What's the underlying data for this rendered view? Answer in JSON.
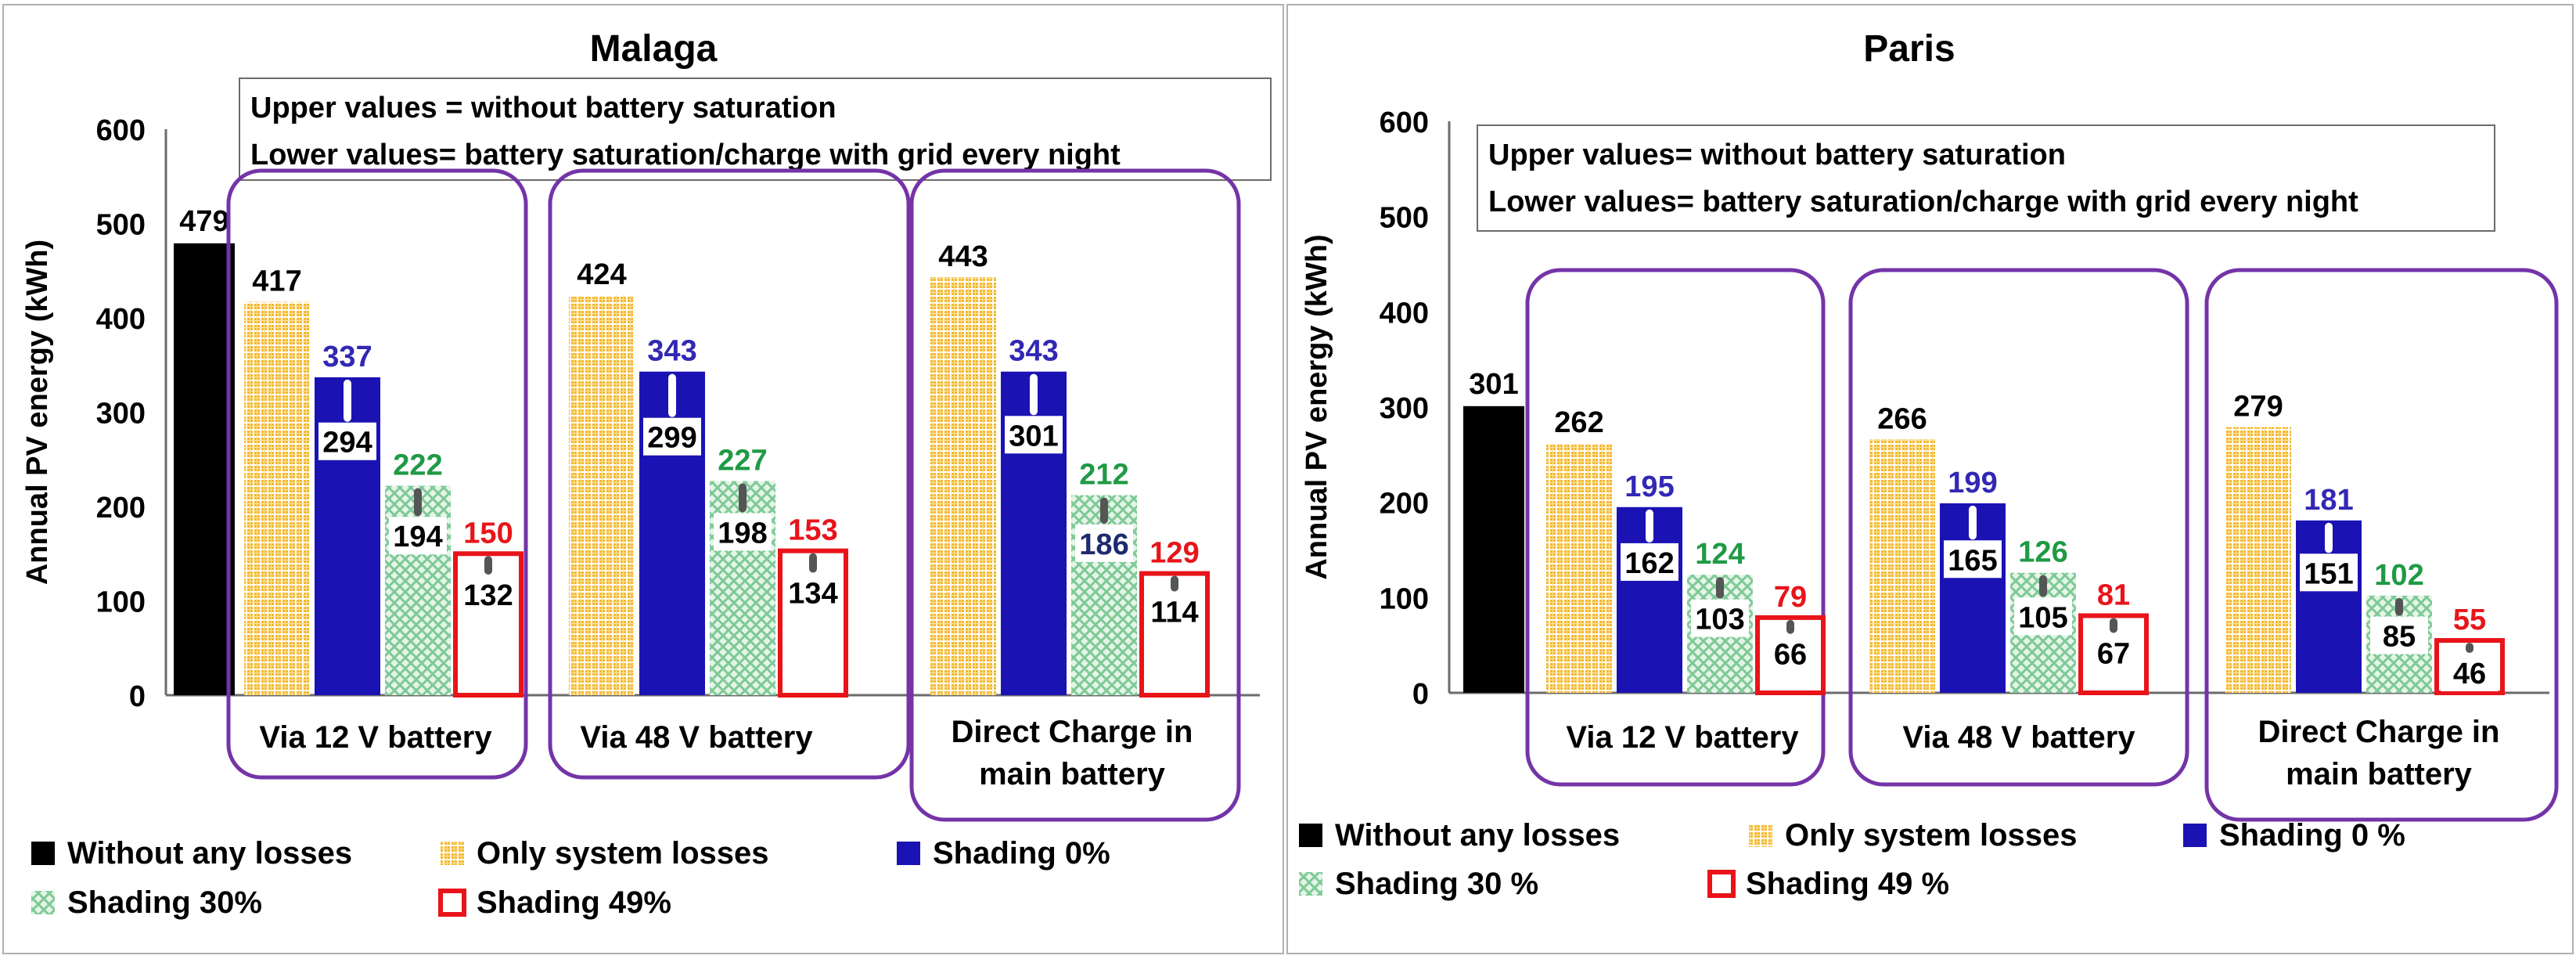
{
  "colors": {
    "none": "#000000",
    "system": "#f5b92e",
    "s0": "#1b12b4",
    "s30": "#8fcf9f",
    "s49": "#e8141a",
    "box_purple": "#7434a8",
    "label_blue": "#3228b4",
    "label_green": "#1f9a45",
    "label_red": "#e8141a",
    "frame": "#b0b0b0"
  },
  "chart_data": [
    {
      "type": "bar",
      "title": "Malaga",
      "ylabel": "Annual PV energy (kWh)",
      "ylim": [
        0,
        600
      ],
      "yticks": [
        "0",
        "100",
        "200",
        "300",
        "400",
        "500",
        "600"
      ],
      "note_lines": [
        "Upper values = without battery saturation",
        "Lower values= battery saturation/charge with grid every night"
      ],
      "reference": {
        "series": "Without any losses",
        "value": 479,
        "label": "479"
      },
      "groups": [
        {
          "label_lines": [
            "Via 12 V battery"
          ],
          "system": {
            "value": 417,
            "label": "417"
          },
          "s0": {
            "upper": 337,
            "upper_label": "337",
            "lower": 294,
            "lower_label": "294"
          },
          "s30": {
            "upper": 222,
            "upper_label": "222",
            "lower": 194,
            "lower_label": "194"
          },
          "s49": {
            "upper": 150,
            "upper_label": "150",
            "lower": 132,
            "lower_label": "132"
          }
        },
        {
          "label_lines": [
            "Via 48 V battery"
          ],
          "system": {
            "value": 424,
            "label": "424"
          },
          "s0": {
            "upper": 343,
            "upper_label": "343",
            "lower": 299,
            "lower_label": "299"
          },
          "s30": {
            "upper": 227,
            "upper_label": "227",
            "lower": 198,
            "lower_label": "198"
          },
          "s49": {
            "upper": 153,
            "upper_label": "153",
            "lower": 134,
            "lower_label": "134"
          }
        },
        {
          "label_lines": [
            "Direct Charge in",
            "main battery"
          ],
          "system": {
            "value": 443,
            "label": "443"
          },
          "s0": {
            "upper": 343,
            "upper_label": "343",
            "lower": 301,
            "lower_label": "301"
          },
          "s30": {
            "upper": 212,
            "upper_label": "212",
            "lower": 186,
            "lower_label": "186"
          },
          "s49": {
            "upper": 129,
            "upper_label": "129",
            "lower": 114,
            "lower_label": "114"
          }
        }
      ],
      "legend": [
        "Without any losses",
        "Only system losses",
        "Shading 0%",
        "Shading 30%",
        "Shading 49%"
      ]
    },
    {
      "type": "bar",
      "title": "Paris",
      "ylabel": "Annual PV energy (kWh)",
      "ylim": [
        0,
        600
      ],
      "yticks": [
        "0",
        "100",
        "200",
        "300",
        "400",
        "500",
        "600"
      ],
      "note_lines": [
        "Upper values= without battery saturation",
        "Lower values= battery saturation/charge with grid every night"
      ],
      "reference": {
        "series": "Without any losses",
        "value": 301,
        "label": "301"
      },
      "groups": [
        {
          "label_lines": [
            "Via 12 V battery"
          ],
          "system": {
            "value": 262,
            "label": "262"
          },
          "s0": {
            "upper": 195,
            "upper_label": "195",
            "lower": 162,
            "lower_label": "162"
          },
          "s30": {
            "upper": 124,
            "upper_label": "124",
            "lower": 103,
            "lower_label": "103"
          },
          "s49": {
            "upper": 79,
            "upper_label": "79",
            "lower": 66,
            "lower_label": "66"
          }
        },
        {
          "label_lines": [
            "Via 48 V battery"
          ],
          "system": {
            "value": 266,
            "label": "266"
          },
          "s0": {
            "upper": 199,
            "upper_label": "199",
            "lower": 165,
            "lower_label": "165"
          },
          "s30": {
            "upper": 126,
            "upper_label": "126",
            "lower": 105,
            "lower_label": "105"
          },
          "s49": {
            "upper": 81,
            "upper_label": "81",
            "lower": 67,
            "lower_label": "67"
          }
        },
        {
          "label_lines": [
            "Direct Charge in",
            "main battery"
          ],
          "system": {
            "value": 279,
            "label": "279"
          },
          "s0": {
            "upper": 181,
            "upper_label": "181",
            "lower": 151,
            "lower_label": "151"
          },
          "s30": {
            "upper": 102,
            "upper_label": "102",
            "lower": 85,
            "lower_label": "85"
          },
          "s49": {
            "upper": 55,
            "upper_label": "55",
            "lower": 46,
            "lower_label": "46"
          }
        }
      ],
      "legend": [
        "Without any losses",
        "Only system losses",
        "Shading 0 %",
        "Shading 30 %",
        "Shading 49 %"
      ]
    }
  ]
}
